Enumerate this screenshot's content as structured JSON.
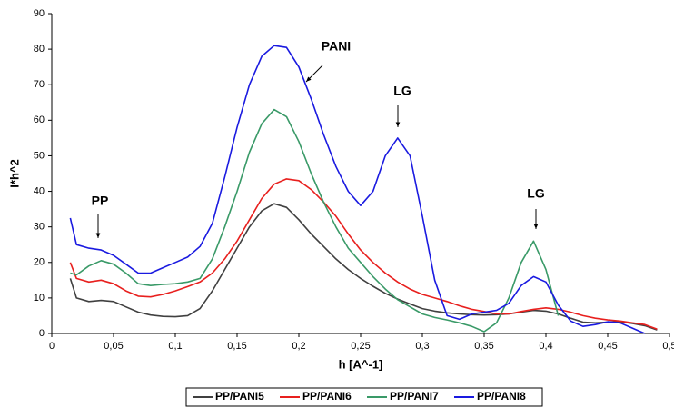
{
  "chart_data": {
    "type": "line",
    "x_label": "h [A^-1]",
    "y_label": "I*h^2",
    "x": [
      0.015,
      0.02,
      0.03,
      0.04,
      0.05,
      0.06,
      0.07,
      0.08,
      0.09,
      0.1,
      0.11,
      0.12,
      0.13,
      0.14,
      0.15,
      0.16,
      0.17,
      0.18,
      0.19,
      0.2,
      0.21,
      0.22,
      0.23,
      0.24,
      0.25,
      0.26,
      0.27,
      0.28,
      0.29,
      0.3,
      0.31,
      0.32,
      0.33,
      0.34,
      0.35,
      0.36,
      0.37,
      0.38,
      0.39,
      0.4,
      0.41,
      0.42,
      0.43,
      0.44,
      0.45,
      0.46,
      0.47,
      0.48,
      0.49
    ],
    "series": [
      {
        "name": "PP/PANI5",
        "color": "#404040",
        "values": [
          15.5,
          10,
          9,
          9.3,
          9,
          7.5,
          6,
          5.2,
          4.8,
          4.7,
          5,
          7,
          12,
          18,
          24,
          30,
          34.5,
          36.5,
          35.5,
          32,
          28,
          24.5,
          21,
          18,
          15.5,
          13.3,
          11.3,
          9.7,
          8.3,
          7,
          6.3,
          5.8,
          5.5,
          5.3,
          5.2,
          5.3,
          5.5,
          6,
          6.5,
          6.3,
          5.5,
          4.3,
          3.2,
          3,
          3.2,
          3.3,
          2.8,
          2.2,
          1
        ]
      },
      {
        "name": "PP/PANI6",
        "color": "#e8201e",
        "values": [
          20,
          15.5,
          14.5,
          15,
          14,
          12,
          10.5,
          10.3,
          11,
          12,
          13.2,
          14.5,
          17,
          21,
          26,
          32,
          38,
          42,
          43.5,
          43,
          40.5,
          37,
          33,
          28,
          23.5,
          20,
          17,
          14.5,
          12.5,
          11,
          10,
          9,
          7.8,
          6.8,
          6.2,
          5.5,
          5.5,
          6.2,
          6.8,
          7.2,
          6.8,
          6,
          5,
          4.3,
          3.8,
          3.5,
          3,
          2.5,
          1.2
        ]
      },
      {
        "name": "PP/PANI7",
        "color": "#3a9a68",
        "values": [
          17,
          16.5,
          19,
          20.5,
          19.5,
          17,
          14,
          13.5,
          13.8,
          14,
          14.5,
          15.5,
          21,
          30,
          40,
          51,
          59,
          63,
          61,
          54,
          45,
          37,
          30,
          24,
          20,
          16,
          12.5,
          9.5,
          7.5,
          5.5,
          4.5,
          3.8,
          3,
          2,
          0.5,
          3,
          10,
          20,
          26,
          18,
          5,
          null,
          null,
          null,
          null,
          null,
          null,
          null,
          null
        ]
      },
      {
        "name": "PP/PANI8",
        "color": "#1a1ae0",
        "values": [
          32.5,
          25,
          24,
          23.5,
          22,
          19.5,
          17,
          17,
          18.5,
          20,
          21.5,
          24.5,
          31,
          44,
          58,
          70,
          78,
          81,
          80.5,
          75,
          66,
          56,
          47,
          40,
          36,
          40,
          50,
          55,
          50,
          33,
          15,
          5,
          4,
          5.5,
          6,
          6.5,
          8.5,
          13.5,
          16,
          14.5,
          8,
          3.5,
          2,
          2.5,
          3.3,
          3,
          1.5,
          0,
          null
        ]
      }
    ],
    "xlim": [
      0,
      0.5
    ],
    "xticks": [
      0,
      {
        "value": 0.05,
        "label": "0,05"
      },
      {
        "value": 0.1,
        "label": "0,1"
      },
      {
        "value": 0.15,
        "label": "0,15"
      },
      {
        "value": 0.2,
        "label": "0,2"
      },
      {
        "value": 0.25,
        "label": "0,25"
      },
      {
        "value": 0.3,
        "label": "0,3"
      },
      {
        "value": 0.35,
        "label": "0,35"
      },
      {
        "value": 0.4,
        "label": "0,4"
      },
      {
        "value": 0.45,
        "label": "0,45"
      },
      {
        "value": 0.5,
        "label": "0,5"
      }
    ],
    "ylim": [
      0,
      90
    ],
    "yticks": [
      0,
      10,
      20,
      30,
      40,
      50,
      60,
      70,
      80,
      90
    ],
    "annotations": [
      "PP",
      "PANI",
      "LG",
      "LG"
    ],
    "legend": "bottom",
    "grid": false
  }
}
